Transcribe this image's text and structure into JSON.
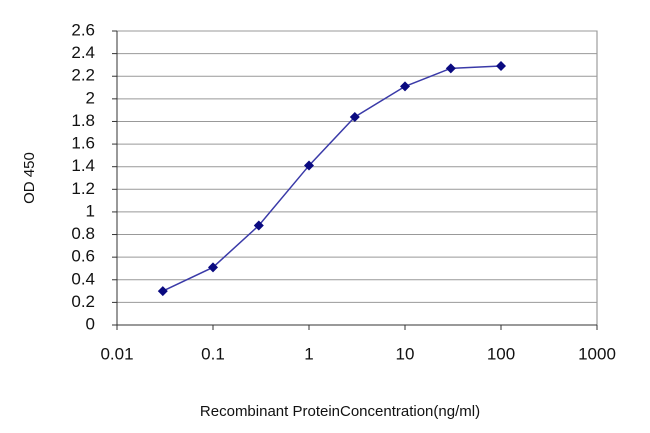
{
  "chart_data": {
    "type": "line",
    "x_label": "Recombinant ProteinConcentration(ng/ml)",
    "y_label": "OD 450",
    "x": [
      0.03,
      0.1,
      0.3,
      1,
      3,
      10,
      30,
      100
    ],
    "series": [
      {
        "color": "#3a3aa8",
        "marker_color": "#0a0a80",
        "values": [
          0.3,
          0.51,
          0.88,
          1.41,
          1.84,
          2.11,
          2.27,
          2.29
        ]
      }
    ],
    "xscale": "log",
    "xlim": [
      0.01,
      1000
    ],
    "xticks": [
      0.01,
      0.1,
      1,
      10,
      100,
      1000
    ],
    "ylim": [
      0,
      2.6
    ],
    "yticks": [
      0,
      0.2,
      0.4,
      0.6,
      0.8,
      1,
      1.2,
      1.4,
      1.6,
      1.8,
      2,
      2.2,
      2.4,
      2.6
    ],
    "grid": true
  }
}
